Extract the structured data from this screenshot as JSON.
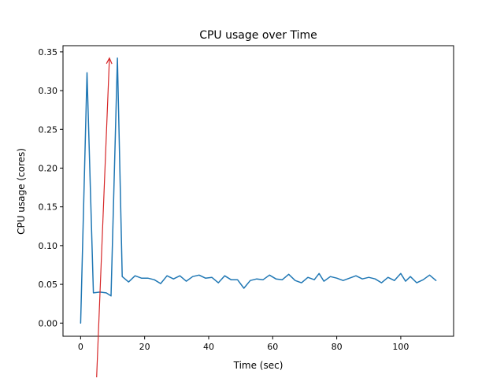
{
  "chart_data": {
    "type": "line",
    "title": "CPU usage over Time",
    "xlabel": "Time (sec)",
    "ylabel": "CPU usage (cores)",
    "xlim": [
      -5.5,
      116.5
    ],
    "ylim": [
      -0.017,
      0.358
    ],
    "x_ticks": [
      0,
      20,
      40,
      60,
      80,
      100
    ],
    "x_tick_labels": [
      "0",
      "20",
      "40",
      "60",
      "80",
      "100"
    ],
    "y_ticks": [
      0.0,
      0.05,
      0.1,
      0.15,
      0.2,
      0.25,
      0.3,
      0.35
    ],
    "y_tick_labels": [
      "0.00",
      "0.05",
      "0.10",
      "0.15",
      "0.20",
      "0.25",
      "0.30",
      "0.35"
    ],
    "grid": false,
    "series": [
      {
        "color": "#1f77b4",
        "x": [
          0,
          2,
          4,
          6,
          8,
          9.5,
          11.5,
          13,
          15,
          17,
          19,
          21,
          23,
          25,
          27,
          29,
          31,
          33,
          35,
          37,
          39,
          41,
          43,
          45,
          47,
          49,
          51,
          53,
          55,
          57,
          59,
          61,
          63,
          65,
          67,
          69,
          71,
          73,
          74.5,
          76,
          78,
          80,
          82,
          84,
          86,
          88,
          90,
          92,
          94,
          96,
          98,
          100,
          101.5,
          103,
          105,
          107,
          109,
          111
        ],
        "y": [
          0.0,
          0.323,
          0.039,
          0.04,
          0.039,
          0.035,
          0.342,
          0.06,
          0.053,
          0.061,
          0.058,
          0.058,
          0.056,
          0.051,
          0.061,
          0.057,
          0.061,
          0.054,
          0.06,
          0.062,
          0.058,
          0.059,
          0.052,
          0.061,
          0.056,
          0.056,
          0.045,
          0.055,
          0.057,
          0.056,
          0.062,
          0.057,
          0.056,
          0.063,
          0.055,
          0.052,
          0.059,
          0.056,
          0.064,
          0.054,
          0.06,
          0.058,
          0.055,
          0.058,
          0.061,
          0.057,
          0.059,
          0.057,
          0.052,
          0.059,
          0.055,
          0.064,
          0.054,
          0.06,
          0.052,
          0.056,
          0.062,
          0.055
        ]
      }
    ],
    "annotation": {
      "color": "#d62728",
      "from": [
        5.0,
        -0.07
      ],
      "to": [
        9.0,
        0.342
      ]
    }
  }
}
